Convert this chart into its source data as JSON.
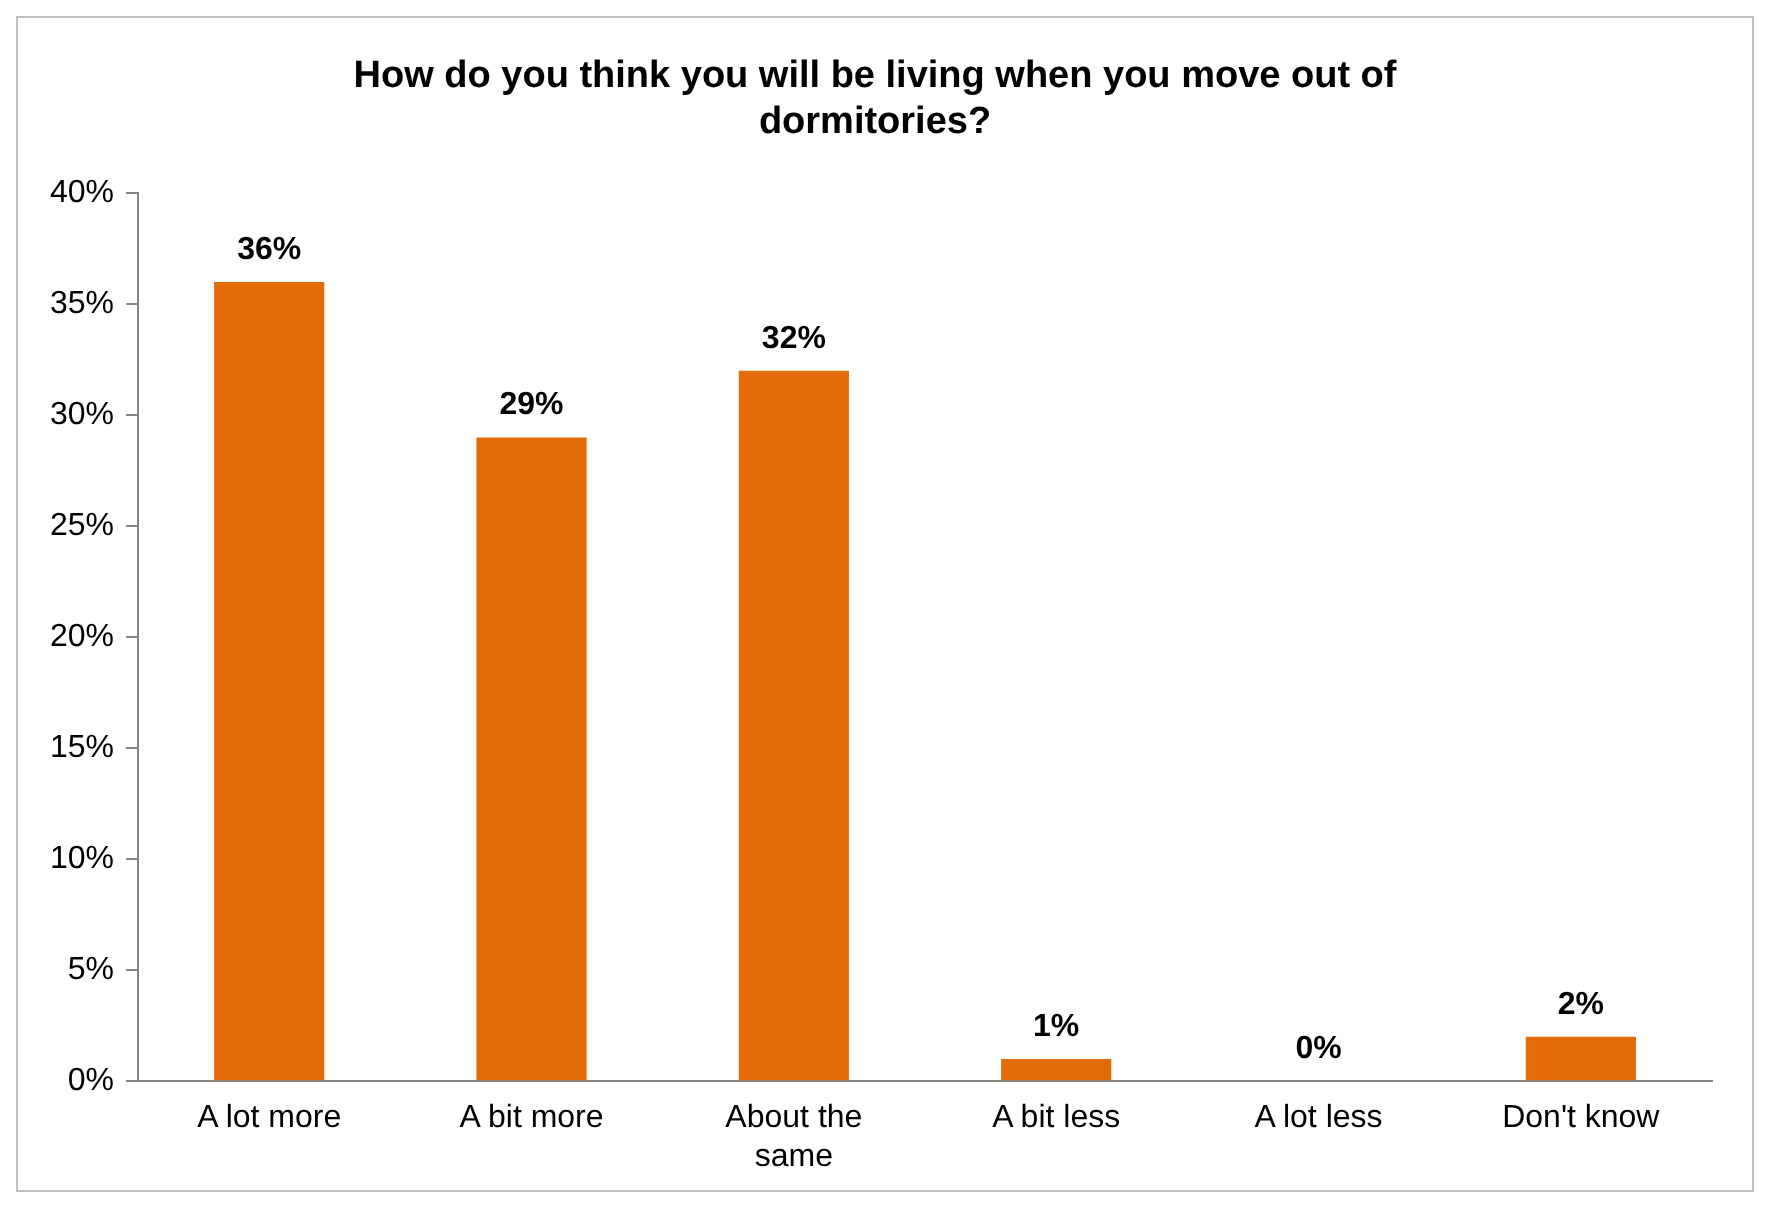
{
  "chart_data": {
    "type": "bar",
    "title": "How do you think you will be living when you move out of dormitories?",
    "categories": [
      "A lot more",
      "A bit more",
      "About the same",
      "A bit less",
      "A lot less",
      "Don't know"
    ],
    "values": [
      36,
      29,
      32,
      1,
      0,
      2
    ],
    "value_labels": [
      "36%",
      "29%",
      "32%",
      "1%",
      "0%",
      "2%"
    ],
    "color": "#e36c09",
    "ylim": [
      0,
      40
    ],
    "yticks": [
      {
        "value": 0,
        "label": "0%"
      },
      {
        "value": 5,
        "label": "5%"
      },
      {
        "value": 10,
        "label": "10%"
      },
      {
        "value": 15,
        "label": "15%"
      },
      {
        "value": 20,
        "label": "20%"
      },
      {
        "value": 25,
        "label": "25%"
      },
      {
        "value": 30,
        "label": "30%"
      },
      {
        "value": 35,
        "label": "35%"
      },
      {
        "value": 40,
        "label": "40%"
      }
    ],
    "grid": false,
    "legend": false
  }
}
